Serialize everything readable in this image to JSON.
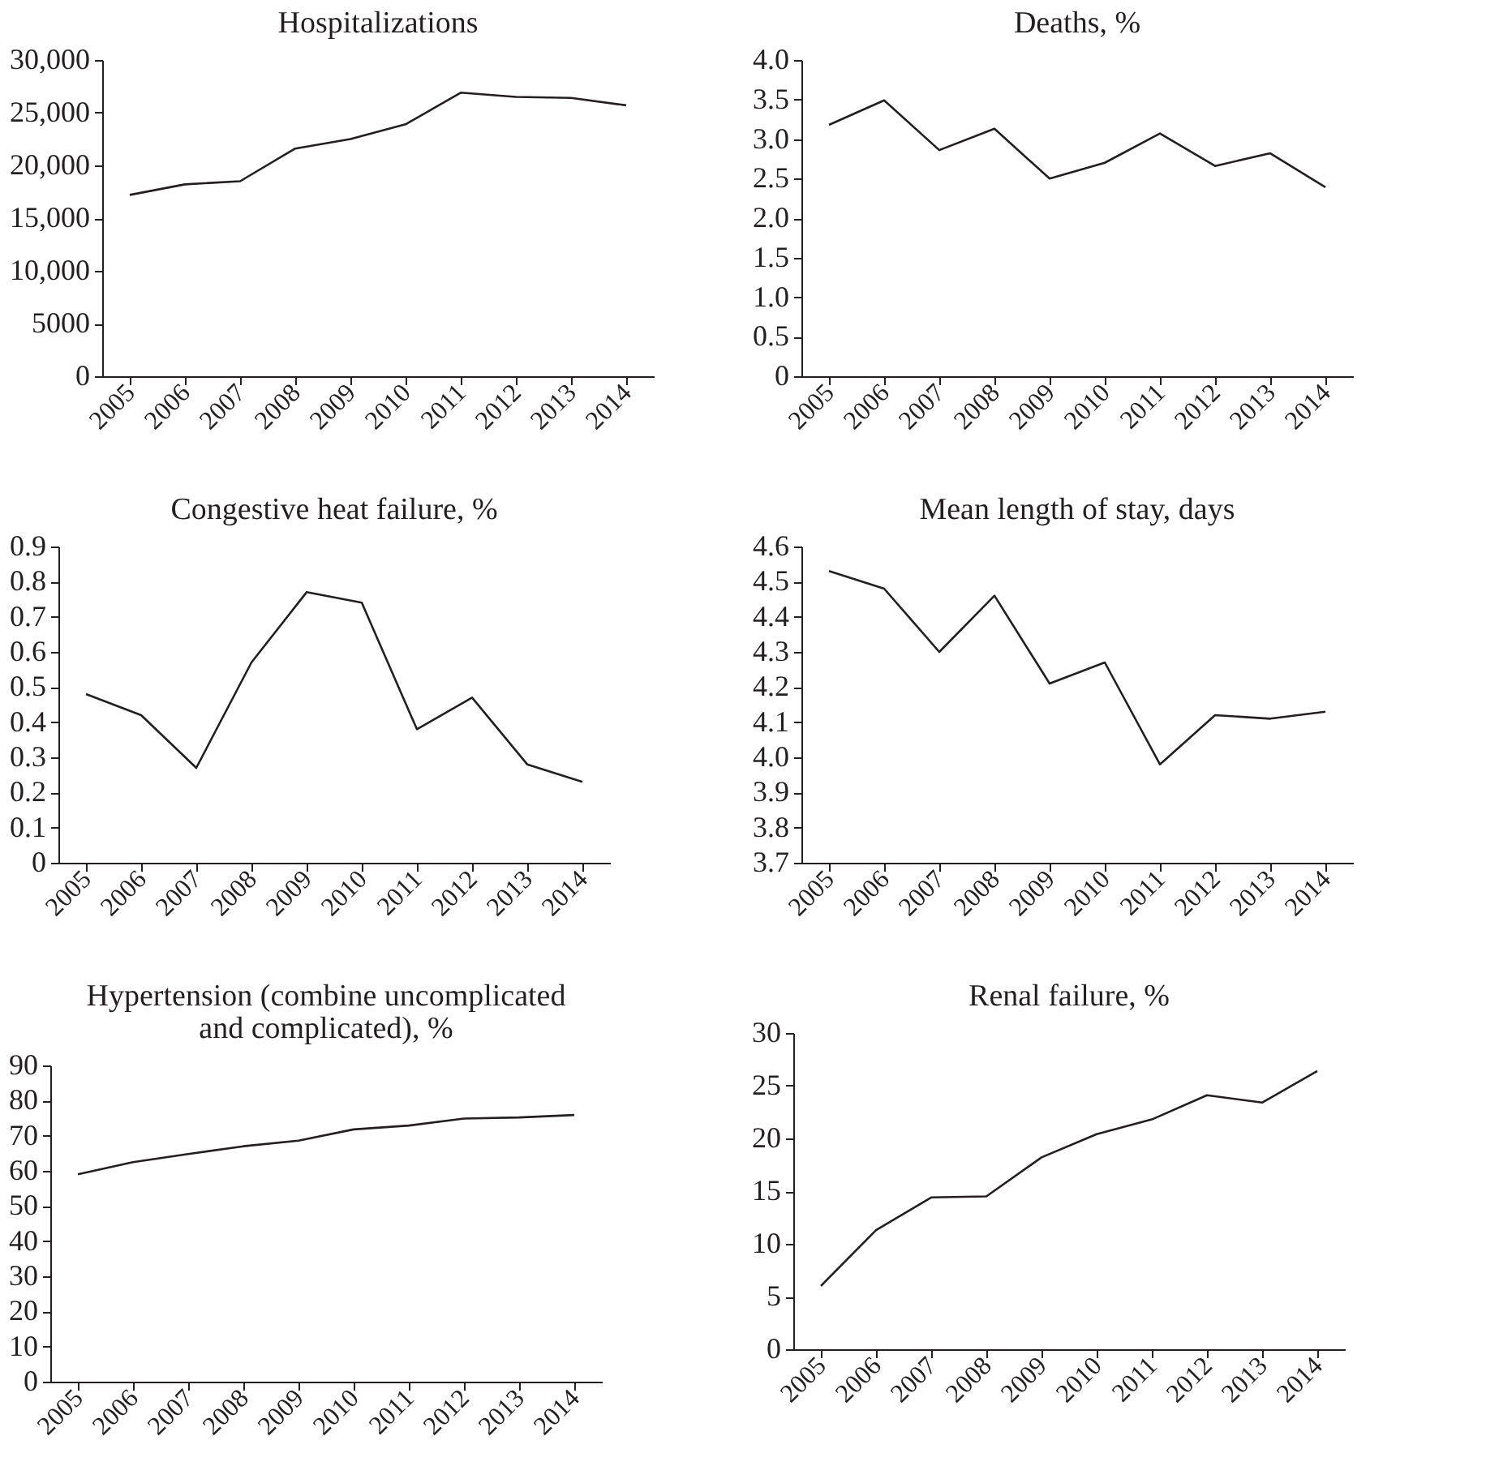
{
  "chart_data": [
    {
      "type": "line",
      "title": "Hospitalizations",
      "categories": [
        "2005",
        "2006",
        "2007",
        "2008",
        "2009",
        "2010",
        "2011",
        "2012",
        "2013",
        "2014"
      ],
      "values": [
        17200,
        18200,
        18500,
        21600,
        22500,
        23900,
        26900,
        26500,
        26400,
        25700
      ],
      "color": "#231f20",
      "ylim": [
        0,
        30000
      ],
      "yticks": [
        0,
        5000,
        {
          "value": 10000,
          "label": "10,000"
        },
        {
          "value": 15000,
          "label": "15,000"
        },
        {
          "value": 20000,
          "label": "20,000"
        },
        {
          "value": 25000,
          "label": "25,000"
        },
        {
          "value": 30000,
          "label": "30,000"
        }
      ],
      "grid": false
    },
    {
      "type": "line",
      "title": "Deaths, %",
      "categories": [
        "2005",
        "2006",
        "2007",
        "2008",
        "2009",
        "2010",
        "2011",
        "2012",
        "2013",
        "2014"
      ],
      "values": [
        3.18,
        3.49,
        2.86,
        3.13,
        2.5,
        2.7,
        3.07,
        2.66,
        2.82,
        2.39
      ],
      "color": "#231f20",
      "ylim": [
        0,
        4
      ],
      "yticks": [
        0,
        0.5,
        {
          "value": 1,
          "label": "1.0"
        },
        1.5,
        {
          "value": 2,
          "label": "2.0"
        },
        2.5,
        {
          "value": 3,
          "label": "3.0"
        },
        3.5,
        {
          "value": 4,
          "label": "4.0"
        }
      ],
      "grid": false
    },
    {
      "type": "line",
      "title": "Congestive heat failure, %",
      "categories": [
        "2005",
        "2006",
        "2007",
        "2008",
        "2009",
        "2010",
        "2011",
        "2012",
        "2013",
        "2014"
      ],
      "values": [
        0.48,
        0.42,
        0.27,
        0.57,
        0.77,
        0.74,
        0.38,
        0.47,
        0.28,
        0.23
      ],
      "color": "#231f20",
      "ylim": [
        0,
        0.9
      ],
      "yticks": [
        0,
        0.1,
        0.2,
        0.3,
        0.4,
        0.5,
        0.6,
        0.7,
        0.8,
        0.9
      ],
      "grid": false
    },
    {
      "type": "line",
      "title": "Mean length of stay, days",
      "categories": [
        "2005",
        "2006",
        "2007",
        "2008",
        "2009",
        "2010",
        "2011",
        "2012",
        "2013",
        "2014"
      ],
      "values": [
        4.53,
        4.48,
        4.3,
        4.46,
        4.21,
        4.27,
        3.98,
        4.12,
        4.11,
        4.13
      ],
      "color": "#231f20",
      "ylim": [
        3.7,
        4.6
      ],
      "yticks": [
        3.7,
        3.8,
        3.9,
        {
          "value": 4,
          "label": "4.0"
        },
        4.1,
        4.2,
        4.3,
        4.4,
        4.5,
        4.6
      ],
      "grid": false
    },
    {
      "type": "line",
      "title": "Hypertension (combine uncomplicated and complicated), %",
      "categories": [
        "2005",
        "2006",
        "2007",
        "2008",
        "2009",
        "2010",
        "2011",
        "2012",
        "2013",
        "2014"
      ],
      "values": [
        59,
        62.5,
        64.8,
        67,
        68.6,
        71.8,
        72.9,
        74.9,
        75.2,
        75.9
      ],
      "color": "#231f20",
      "ylim": [
        0,
        90
      ],
      "yticks": [
        0,
        10,
        20,
        30,
        40,
        50,
        60,
        70,
        80,
        90
      ],
      "grid": false
    },
    {
      "type": "line",
      "title": "Renal failure, %",
      "categories": [
        "2005",
        "2006",
        "2007",
        "2008",
        "2009",
        "2010",
        "2011",
        "2012",
        "2013",
        "2014"
      ],
      "values": [
        6,
        11.3,
        14.4,
        14.5,
        18.2,
        20.4,
        21.8,
        24.1,
        23.4,
        26.4
      ],
      "color": "#231f20",
      "ylim": [
        0,
        30
      ],
      "yticks": [
        0,
        5,
        10,
        15,
        20,
        25,
        30
      ],
      "grid": false
    }
  ]
}
